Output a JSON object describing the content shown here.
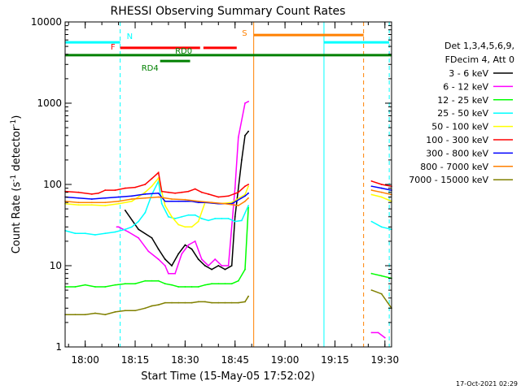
{
  "chart_data": {
    "type": "line",
    "title": "RHESSI Observing Summary Count Rates",
    "xlabel": "Start Time (15-May-05 17:52:02)",
    "ylabel": "Count Rate (s⁻¹ detector⁻¹)",
    "ylabel_main": "Count Rate (s",
    "ylabel_sup1": "-1",
    "ylabel_mid": " detector",
    "ylabel_sup2": "-1",
    "ylabel_end": ")",
    "x_range_minutes": [
      -6.03,
      92
    ],
    "y_range": [
      1,
      10000
    ],
    "y_scale": "log",
    "x_ticks": [
      {
        "minute": 0,
        "label": "18:00"
      },
      {
        "minute": 15,
        "label": "18:15"
      },
      {
        "minute": 30,
        "label": "18:30"
      },
      {
        "minute": 45,
        "label": "18:45"
      },
      {
        "minute": 60,
        "label": "19:00"
      },
      {
        "minute": 75,
        "label": "19:15"
      },
      {
        "minute": 90,
        "label": "19:30"
      }
    ],
    "y_ticks": [
      {
        "value": 1,
        "label": "1"
      },
      {
        "value": 10,
        "label": "10"
      },
      {
        "value": 100,
        "label": "100"
      },
      {
        "value": 1000,
        "label": "1000"
      },
      {
        "value": 10000,
        "label": "10000"
      }
    ],
    "legend_header": [
      "Det 1,3,4,5,6,9,",
      "FDecim 4, Att 0"
    ],
    "series": [
      {
        "name": "3 - 6 keV",
        "color": "#000000",
        "x": [
          12,
          16,
          20,
          22,
          24,
          26,
          28,
          30,
          32,
          34,
          36,
          38,
          40,
          42,
          44,
          45,
          47,
          48,
          49
        ],
        "values": [
          48,
          28,
          22,
          16,
          12,
          10,
          14,
          18,
          16,
          12,
          10,
          9,
          10,
          9,
          10,
          40,
          200,
          400,
          450
        ]
      },
      {
        "name": "6 - 12 keV",
        "color": "#ff00ff",
        "x": [
          9.5,
          10,
          13,
          16,
          19,
          22,
          24,
          25,
          27,
          29,
          31,
          33,
          35,
          37,
          39,
          41,
          43,
          45,
          46,
          48,
          49
        ],
        "values": [
          30,
          30,
          26,
          22,
          15,
          12,
          10,
          8,
          8,
          14,
          18,
          20,
          12,
          10,
          12,
          10,
          10,
          90,
          380,
          1000,
          1050
        ]
      },
      {
        "name": "12 - 25 keV",
        "color": "#00ff00",
        "x": [
          -6,
          -3,
          0,
          3,
          6,
          9,
          12,
          15,
          18,
          20,
          22,
          24,
          26,
          28,
          30,
          32,
          34,
          36,
          38,
          40,
          42,
          44,
          46,
          48,
          49
        ],
        "values": [
          5.5,
          5.5,
          5.8,
          5.5,
          5.5,
          5.8,
          6,
          6,
          6.5,
          6.5,
          6.5,
          6,
          5.8,
          5.5,
          5.5,
          5.5,
          5.5,
          5.8,
          6,
          6,
          6,
          6,
          6.5,
          9,
          52
        ]
      },
      {
        "name": "25 - 50 keV",
        "color": "#00ffff",
        "x": [
          -6,
          -3,
          0,
          3,
          6,
          9,
          12,
          14,
          16,
          18,
          20,
          22,
          23,
          25,
          27,
          29,
          31,
          33,
          35,
          37,
          39,
          41,
          43,
          45,
          47,
          49
        ],
        "values": [
          27,
          25,
          25,
          24,
          25,
          26,
          28,
          30,
          35,
          45,
          75,
          110,
          58,
          40,
          38,
          40,
          42,
          42,
          38,
          36,
          38,
          38,
          38,
          35,
          36,
          55
        ]
      },
      {
        "name": "50 - 100 keV",
        "color": "#ffff00",
        "x": [
          -6,
          -2,
          2,
          6,
          10,
          14,
          18,
          20,
          22,
          24,
          26,
          28,
          30,
          32,
          34,
          36,
          40,
          44,
          48,
          49
        ],
        "values": [
          58,
          56,
          56,
          55,
          58,
          62,
          80,
          95,
          120,
          55,
          40,
          32,
          30,
          30,
          35,
          60,
          58,
          60,
          75,
          95
        ]
      },
      {
        "name": "100 - 300 keV",
        "color": "#ff0000",
        "x": [
          -6,
          -2,
          2,
          4,
          6,
          9,
          12,
          15,
          18,
          20,
          22,
          23,
          25,
          27,
          29,
          31,
          33,
          35,
          37,
          40,
          43,
          46,
          48,
          49
        ],
        "values": [
          82,
          80,
          76,
          78,
          85,
          85,
          90,
          92,
          100,
          118,
          140,
          82,
          80,
          78,
          80,
          82,
          88,
          80,
          76,
          70,
          72,
          80,
          95,
          100
        ]
      },
      {
        "name": "300 - 800 keV",
        "color": "#0000ff",
        "x": [
          -6,
          -2,
          2,
          6,
          10,
          14,
          18,
          22,
          24,
          26,
          28,
          30,
          32,
          34,
          36,
          40,
          44,
          48,
          49
        ],
        "values": [
          70,
          68,
          66,
          68,
          70,
          72,
          76,
          78,
          62,
          62,
          62,
          62,
          62,
          60,
          60,
          58,
          58,
          72,
          78
        ]
      },
      {
        "name": "800 - 7000 keV",
        "color": "#ff8000",
        "x": [
          -6,
          -2,
          2,
          6,
          10,
          14,
          18,
          22,
          24,
          26,
          30,
          34,
          38,
          42,
          46,
          48,
          49
        ],
        "values": [
          62,
          60,
          60,
          60,
          62,
          66,
          68,
          70,
          68,
          66,
          65,
          62,
          60,
          58,
          55,
          62,
          68
        ]
      },
      {
        "name": "7000 - 15000 keV",
        "color": "#808000",
        "x": [
          -6,
          -3,
          0,
          3,
          6,
          9,
          12,
          15,
          18,
          20,
          22,
          24,
          26,
          28,
          30,
          32,
          34,
          36,
          38,
          40,
          42,
          44,
          46,
          48,
          49
        ],
        "values": [
          2.5,
          2.5,
          2.5,
          2.6,
          2.5,
          2.7,
          2.8,
          2.8,
          3.0,
          3.2,
          3.3,
          3.5,
          3.5,
          3.5,
          3.5,
          3.5,
          3.6,
          3.6,
          3.5,
          3.5,
          3.5,
          3.5,
          3.5,
          3.6,
          4.2
        ]
      }
    ],
    "series_after_gap": [
      {
        "color": "#ff0000",
        "x": [
          86,
          89,
          92
        ],
        "values": [
          110,
          100,
          95
        ]
      },
      {
        "color": "#0000ff",
        "x": [
          86,
          89,
          92
        ],
        "values": [
          95,
          90,
          85
        ]
      },
      {
        "color": "#ff8000",
        "x": [
          86,
          89,
          92
        ],
        "values": [
          85,
          80,
          75
        ]
      },
      {
        "color": "#ffff00",
        "x": [
          86,
          89,
          92
        ],
        "values": [
          75,
          70,
          62
        ]
      },
      {
        "color": "#00ffff",
        "x": [
          86,
          89,
          92
        ],
        "values": [
          35,
          30,
          28
        ]
      },
      {
        "color": "#00ff00",
        "x": [
          86,
          89,
          92
        ],
        "values": [
          8,
          7.5,
          7
        ]
      },
      {
        "color": "#808000",
        "x": [
          86,
          89,
          92
        ],
        "values": [
          5,
          4.5,
          3
        ]
      },
      {
        "color": "#ff00ff",
        "x": [
          86,
          88,
          90
        ],
        "values": [
          1.5,
          1.5,
          1.3
        ]
      }
    ],
    "vertical_markers": [
      {
        "minute": 10.5,
        "color": "#00ffff",
        "style": "dashed"
      },
      {
        "minute": 50.6,
        "color": "#ff8000",
        "style": "solid"
      },
      {
        "minute": 71.7,
        "color": "#00ffff",
        "style": "solid"
      },
      {
        "minute": 83.6,
        "color": "#ff8000",
        "style": "dashed"
      },
      {
        "minute": 91.3,
        "color": "#00ffff",
        "style": "dashed"
      },
      {
        "minute": -6.03,
        "color": "#00ffff",
        "style": "solid"
      }
    ],
    "flags": [
      {
        "label": "N",
        "color": "#00ffff",
        "segments": [
          [
            -6,
            10.5
          ],
          [
            71.7,
            91.3
          ]
        ],
        "level": 5600
      },
      {
        "label": "S",
        "color": "#ff8000",
        "segments": [
          [
            50.6,
            83.6
          ]
        ],
        "level": 6900
      },
      {
        "label": "F",
        "color": "#ff0000",
        "segments": [
          [
            10.5,
            34.5
          ],
          [
            35.5,
            45.5
          ]
        ],
        "level": 4800
      },
      {
        "label": "RD0",
        "color": "#008000",
        "segments": [
          [
            -6,
            92
          ]
        ],
        "level": 3900
      },
      {
        "label": "RD4",
        "color": "#008000",
        "segments": [
          [
            22.5,
            31.5
          ]
        ],
        "level": 3300
      }
    ]
  },
  "footer": {
    "date": "17-Oct-2021 02:29"
  }
}
